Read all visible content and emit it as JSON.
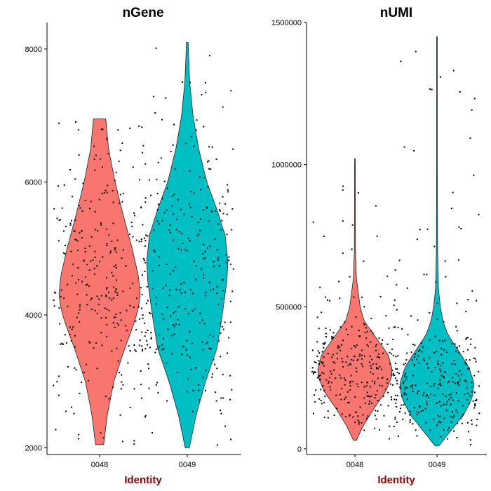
{
  "colors": {
    "group_0048": "#F8766D",
    "group_0049": "#00BFC4",
    "axis_title": "#8B0000",
    "points": "#000000"
  },
  "chart_data": [
    {
      "type": "violin",
      "title": "nGene",
      "xlabel": "Identity",
      "ylabel": "",
      "categories": [
        "0048",
        "0049"
      ],
      "ylim": [
        1900,
        8400
      ],
      "yticks": [
        2000,
        4000,
        6000,
        8000
      ],
      "ytick_labels": [
        "2000",
        "4000",
        "6000",
        "8000"
      ],
      "grid": false,
      "points_per_group": 300,
      "groups": [
        {
          "name": "0048",
          "min": 2050,
          "max": 6950,
          "median": 4300,
          "profile": [
            [
              2050,
              0.1
            ],
            [
              2500,
              0.19
            ],
            [
              3000,
              0.35
            ],
            [
              3500,
              0.62
            ],
            [
              3900,
              0.86
            ],
            [
              4100,
              0.95
            ],
            [
              4300,
              1.0
            ],
            [
              4600,
              0.95
            ],
            [
              5000,
              0.8
            ],
            [
              5500,
              0.58
            ],
            [
              6000,
              0.38
            ],
            [
              6500,
              0.22
            ],
            [
              6950,
              0.15
            ]
          ]
        },
        {
          "name": "0049",
          "min": 2000,
          "max": 8100,
          "median": 4600,
          "profile": [
            [
              2000,
              0.05
            ],
            [
              2500,
              0.22
            ],
            [
              3000,
              0.45
            ],
            [
              3500,
              0.73
            ],
            [
              4000,
              0.86
            ],
            [
              4500,
              0.97
            ],
            [
              4800,
              1.0
            ],
            [
              5200,
              0.93
            ],
            [
              5600,
              0.72
            ],
            [
              6000,
              0.48
            ],
            [
              6500,
              0.28
            ],
            [
              7000,
              0.14
            ],
            [
              7500,
              0.06
            ],
            [
              8100,
              0.02
            ]
          ]
        }
      ]
    },
    {
      "type": "violin",
      "title": "nUMI",
      "xlabel": "Identity",
      "ylabel": "",
      "categories": [
        "0048",
        "0049"
      ],
      "ylim": [
        -20000,
        1500000
      ],
      "yticks": [
        0,
        500000,
        1000000,
        1500000
      ],
      "ytick_labels": [
        "0",
        "500000",
        "1000000",
        "1500000"
      ],
      "grid": false,
      "points_per_group": 300,
      "groups": [
        {
          "name": "0048",
          "min": 30000,
          "max": 1020000,
          "median": 260000,
          "profile": [
            [
              30000,
              0.04
            ],
            [
              80000,
              0.22
            ],
            [
              150000,
              0.55
            ],
            [
              200000,
              0.82
            ],
            [
              250000,
              0.98
            ],
            [
              280000,
              1.0
            ],
            [
              330000,
              0.9
            ],
            [
              400000,
              0.52
            ],
            [
              450000,
              0.25
            ],
            [
              500000,
              0.14
            ],
            [
              550000,
              0.09
            ],
            [
              600000,
              0.04
            ],
            [
              700000,
              0.015
            ],
            [
              1020000,
              0.01
            ]
          ]
        },
        {
          "name": "0049",
          "min": 10000,
          "max": 1450000,
          "median": 230000,
          "profile": [
            [
              10000,
              0.05
            ],
            [
              60000,
              0.35
            ],
            [
              120000,
              0.72
            ],
            [
              180000,
              0.95
            ],
            [
              230000,
              1.0
            ],
            [
              290000,
              0.85
            ],
            [
              350000,
              0.55
            ],
            [
              400000,
              0.3
            ],
            [
              450000,
              0.16
            ],
            [
              500000,
              0.09
            ],
            [
              560000,
              0.04
            ],
            [
              700000,
              0.015
            ],
            [
              1000000,
              0.01
            ],
            [
              1450000,
              0.01
            ]
          ]
        }
      ]
    }
  ]
}
